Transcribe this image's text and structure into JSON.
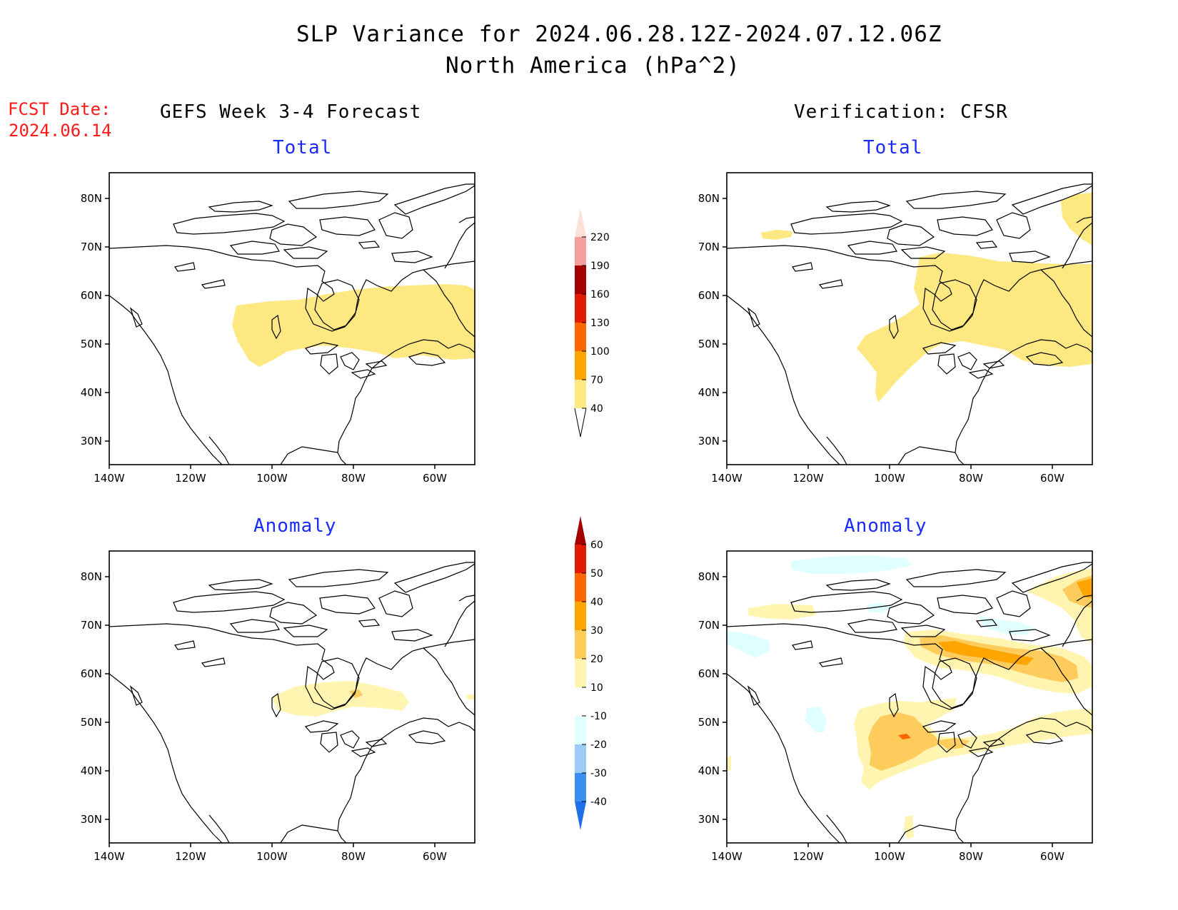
{
  "header": {
    "title_line1": "SLP Variance for 2024.06.28.12Z-2024.07.12.06Z",
    "title_line2": "North America (hPa^2)",
    "fcst_label": "FCST Date:",
    "fcst_date": "2024.06.14"
  },
  "columns": {
    "left_label": "GEFS Week 3-4 Forecast",
    "right_label": "Verification: CFSR"
  },
  "panels": {
    "forecast_total": "Total",
    "verif_total": "Total",
    "forecast_anomaly": "Anomaly",
    "verif_anomaly": "Anomaly"
  },
  "axes": {
    "lat_labels": [
      "80N",
      "70N",
      "60N",
      "50N",
      "40N",
      "30N"
    ],
    "lon_labels": [
      "140W",
      "120W",
      "100W",
      "80W",
      "60W"
    ]
  },
  "colorbars": {
    "total": {
      "levels": [
        "40",
        "70",
        "100",
        "130",
        "160",
        "190",
        "220"
      ],
      "colors": [
        "#fde882",
        "#ffa500",
        "#ff6600",
        "#e21c00",
        "#a50000",
        "#f4a0a0",
        "#fde0d8"
      ]
    },
    "anomaly": {
      "levels": [
        "-40",
        "-30",
        "-20",
        "-10",
        "10",
        "20",
        "30",
        "40",
        "50",
        "60"
      ],
      "colors": [
        "#1f6fe8",
        "#3c8ef0",
        "#9ccbf6",
        "#e0ffff",
        "#ffffff",
        "#fff5b0",
        "#fecc5c",
        "#ffa500",
        "#ff6600",
        "#e21c00",
        "#a50000"
      ]
    }
  }
}
